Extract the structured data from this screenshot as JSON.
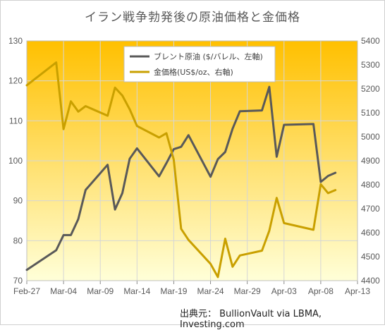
{
  "chart_data": {
    "type": "line",
    "title": "イラン戦争勃発後の原油価格と金価格",
    "source": "出典元： BullionVault via LBMA, Investing.com",
    "colors": {
      "brent": "#595959",
      "gold": "#C9A000",
      "bg_top": "#FFC000",
      "bg_bottom": "#FFFFD8"
    },
    "x_ticks": [
      "Feb-27",
      "Mar-04",
      "Mar-09",
      "Mar-14",
      "Mar-19",
      "Mar-24",
      "Mar-29",
      "Apr-03",
      "Apr-08",
      "Apr-13"
    ],
    "y_left": {
      "min": 70,
      "max": 130,
      "ticks": [
        "70",
        "80",
        "90",
        "100",
        "110",
        "120",
        "130"
      ]
    },
    "y_right": {
      "min": 4400,
      "max": 5400,
      "ticks": [
        "4400",
        "4500",
        "4600",
        "4700",
        "4800",
        "4900",
        "5000",
        "5100",
        "5200",
        "5300",
        "5400"
      ]
    },
    "grid": true,
    "legend_position": "top-center",
    "series": [
      {
        "name": "ブレント原油 ($/バレル、左軸)",
        "axis": "left",
        "x": [
          "2025-02-27",
          "2025-03-03",
          "2025-03-04",
          "2025-03-05",
          "2025-03-06",
          "2025-03-07",
          "2025-03-10",
          "2025-03-11",
          "2025-03-12",
          "2025-03-13",
          "2025-03-14",
          "2025-03-17",
          "2025-03-18",
          "2025-03-19",
          "2025-03-20",
          "2025-03-21",
          "2025-03-24",
          "2025-03-25",
          "2025-03-26",
          "2025-03-27",
          "2025-03-28",
          "2025-03-31",
          "2025-04-01",
          "2025-04-02",
          "2025-04-03",
          "2025-04-07",
          "2025-04-08",
          "2025-04-09",
          "2025-04-10"
        ],
        "values": [
          72.7,
          77.6,
          81.4,
          81.4,
          85.4,
          92.7,
          99.0,
          87.8,
          91.9,
          100.5,
          103.1,
          96.1,
          99.4,
          102.9,
          103.5,
          106.4,
          96.0,
          100.4,
          102.2,
          108.0,
          112.4,
          112.6,
          118.5,
          101.0,
          109.0,
          109.2,
          94.7,
          96.2,
          97.0
        ]
      },
      {
        "name": "金価格(US$/oz、右軸)",
        "axis": "right",
        "x": [
          "2025-02-27",
          "2025-03-03",
          "2025-03-04",
          "2025-03-05",
          "2025-03-06",
          "2025-03-07",
          "2025-03-10",
          "2025-03-11",
          "2025-03-12",
          "2025-03-13",
          "2025-03-14",
          "2025-03-17",
          "2025-03-18",
          "2025-03-19",
          "2025-03-20",
          "2025-03-21",
          "2025-03-24",
          "2025-03-25",
          "2025-03-26",
          "2025-03-27",
          "2025-03-28",
          "2025-03-31",
          "2025-04-01",
          "2025-04-02",
          "2025-04-03",
          "2025-04-07",
          "2025-04-08",
          "2025-04-09",
          "2025-04-10"
        ],
        "values": [
          5215,
          5310,
          5032,
          5148,
          5105,
          5128,
          5088,
          5205,
          5172,
          5115,
          5045,
          4997,
          5015,
          4905,
          4616,
          4570,
          4470,
          4415,
          4575,
          4458,
          4505,
          4525,
          4608,
          4745,
          4640,
          4612,
          4802,
          4765,
          4778
        ]
      }
    ]
  }
}
